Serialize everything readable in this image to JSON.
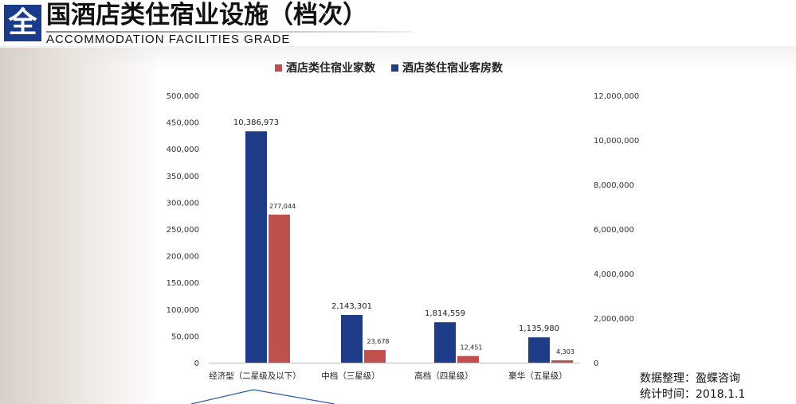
{
  "header": {
    "logo_char": "全",
    "title": "国酒店类住宿业设施（档次）",
    "subtitle": "ACCOMMODATION FACILITIES GRADE"
  },
  "source": {
    "line1": "数据整理：盈蝶咨询",
    "line2": "统计时间：2018.1.1"
  },
  "colors": {
    "count": "#c0504d",
    "rooms": "#1f3c88"
  },
  "chart_data": {
    "type": "bar",
    "categories": [
      "经济型（二星级及以下）",
      "中档（三星级）",
      "高档（四星级）",
      "豪华（五星级）"
    ],
    "series": [
      {
        "name": "酒店类住宿业家数",
        "axis": "left",
        "values": [
          277044,
          23678,
          12451,
          4303
        ],
        "labels": [
          "277,044",
          "23,678",
          "12,451",
          "4,303"
        ]
      },
      {
        "name": "酒店类住宿业客房数",
        "axis": "right",
        "values": [
          10386973,
          2143301,
          1814559,
          1135980
        ],
        "labels": [
          "10,386,973",
          "2,143,301",
          "1,814,559",
          "1,135,980"
        ]
      }
    ],
    "left_axis": {
      "range": [
        0,
        500000
      ],
      "ticks": [
        "0",
        "50,000",
        "100,000",
        "150,000",
        "200,000",
        "250,000",
        "300,000",
        "350,000",
        "400,000",
        "450,000",
        "500,000"
      ]
    },
    "right_axis": {
      "range": [
        0,
        12000000
      ],
      "ticks": [
        "0",
        "2,000,000",
        "4,000,000",
        "6,000,000",
        "8,000,000",
        "10,000,000",
        "12,000,000"
      ]
    },
    "legend": "top",
    "grid": false
  }
}
